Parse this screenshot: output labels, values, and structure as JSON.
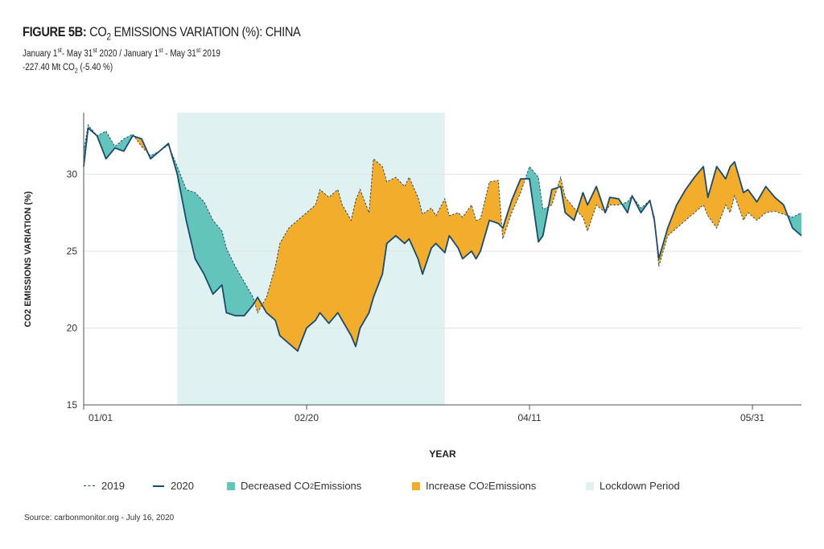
{
  "header": {
    "title_bold": "FIGURE 5B:",
    "title_rest_pre": " CO",
    "title_sub": "2",
    "title_rest_post": " EMISSIONS VARIATION (%): CHINA",
    "line1": {
      "a": "January 1",
      "a_sup": "st",
      "b": "- May 31",
      "b_sup": "st",
      "c": " 2020 / January 1",
      "c_sup": "st",
      "d": " - May 31",
      "d_sup": "st",
      "e": " 2019"
    },
    "line2": {
      "a": "-227.40 Mt CO",
      "a_sub": "2",
      "b": " (-5.40 %)"
    }
  },
  "source": "Source: carbonmonitor.org - July 16, 2020",
  "legend": {
    "l2019": "2019",
    "l2020": "2020",
    "dec_pre": "Decreased CO",
    "dec_sub": "2",
    "dec_post": " Emissions",
    "inc_pre": "Increase CO",
    "inc_sub": "2",
    "inc_post": " Emissions",
    "lockdown": "Lockdown Period"
  },
  "colors": {
    "line2020": "#1c4a6e",
    "line2019": "#2b4b63",
    "decrease": "#62c4bb",
    "increase": "#f3ad2c",
    "lockdown": "#dff1f1",
    "grid": "#e3e3e3"
  },
  "chart_data": {
    "type": "line",
    "xlabel": "YEAR",
    "ylabel": "CO2 EMISSIONS VARIATION (%)",
    "ylim": [
      15,
      34
    ],
    "yticks": [
      15,
      20,
      25,
      30
    ],
    "x_ticks": [
      {
        "day": 1,
        "label": "01/01"
      },
      {
        "day": 51,
        "label": "02/20"
      },
      {
        "day": 101,
        "label": "04/11"
      },
      {
        "day": 151,
        "label": "05/31"
      }
    ],
    "lockdown_days": [
      22,
      82
    ],
    "series": [
      {
        "name": "2019",
        "style": "dashed",
        "points": [
          [
            1,
            31.5
          ],
          [
            2,
            33.2
          ],
          [
            4,
            32.5
          ],
          [
            6,
            32.8
          ],
          [
            8,
            31.8
          ],
          [
            10,
            32.3
          ],
          [
            12,
            32.6
          ],
          [
            14,
            31.8
          ],
          [
            16,
            31.2
          ],
          [
            18,
            31.5
          ],
          [
            20,
            31.9
          ],
          [
            22,
            30.5
          ],
          [
            24,
            29
          ],
          [
            26,
            28.8
          ],
          [
            28,
            28.2
          ],
          [
            30,
            27
          ],
          [
            32,
            26.3
          ],
          [
            33,
            25.2
          ],
          [
            35,
            24
          ],
          [
            37,
            23
          ],
          [
            39,
            22
          ],
          [
            40,
            21
          ],
          [
            42,
            22
          ],
          [
            44,
            24
          ],
          [
            45,
            25.5
          ],
          [
            47,
            26.5
          ],
          [
            49,
            27
          ],
          [
            51,
            27.5
          ],
          [
            53,
            28
          ],
          [
            54,
            29
          ],
          [
            56,
            28.5
          ],
          [
            58,
            29
          ],
          [
            59,
            28
          ],
          [
            61,
            27
          ],
          [
            62,
            28.3
          ],
          [
            63,
            29
          ],
          [
            65,
            27.5
          ],
          [
            66,
            31
          ],
          [
            68,
            30.5
          ],
          [
            69,
            29.5
          ],
          [
            71,
            29.8
          ],
          [
            73,
            29.2
          ],
          [
            74,
            29.8
          ],
          [
            76,
            28.5
          ],
          [
            77,
            27.4
          ],
          [
            79,
            27.8
          ],
          [
            80,
            27.3
          ],
          [
            82,
            28.4
          ],
          [
            83,
            27.3
          ],
          [
            85,
            27.5
          ],
          [
            86,
            27.2
          ],
          [
            88,
            28
          ],
          [
            89,
            27
          ],
          [
            90,
            27.1
          ],
          [
            92,
            29.5
          ],
          [
            94,
            29.6
          ],
          [
            95,
            25.8
          ],
          [
            97,
            27.5
          ],
          [
            99,
            28.8
          ],
          [
            101,
            30.5
          ],
          [
            103,
            29.8
          ],
          [
            104,
            27.7
          ],
          [
            106,
            28
          ],
          [
            108,
            29.8
          ],
          [
            109,
            28.5
          ],
          [
            111,
            27.8
          ],
          [
            113,
            27.2
          ],
          [
            114,
            26.3
          ],
          [
            116,
            28
          ],
          [
            118,
            27.5
          ],
          [
            119,
            28
          ],
          [
            121,
            28
          ],
          [
            123,
            28.2
          ],
          [
            124,
            28.6
          ],
          [
            126,
            27.8
          ],
          [
            128,
            28.3
          ],
          [
            129,
            27.2
          ],
          [
            130,
            24
          ],
          [
            132,
            26
          ],
          [
            134,
            26.5
          ],
          [
            136,
            27
          ],
          [
            138,
            27.5
          ],
          [
            140,
            28
          ],
          [
            141,
            27.3
          ],
          [
            143,
            26.5
          ],
          [
            145,
            28
          ],
          [
            146,
            27.5
          ],
          [
            147,
            28.6
          ],
          [
            149,
            27
          ],
          [
            150,
            27.5
          ],
          [
            152,
            27
          ],
          [
            154,
            27.5
          ],
          [
            156,
            27.6
          ],
          [
            158,
            27.4
          ],
          [
            160,
            27.2
          ],
          [
            162,
            27.5
          ]
        ]
      },
      {
        "name": "2020",
        "style": "solid",
        "points": [
          [
            1,
            30.5
          ],
          [
            2,
            33
          ],
          [
            4,
            32.5
          ],
          [
            6,
            31
          ],
          [
            8,
            31.7
          ],
          [
            10,
            31.5
          ],
          [
            12,
            32.5
          ],
          [
            14,
            32.3
          ],
          [
            16,
            31
          ],
          [
            18,
            31.5
          ],
          [
            20,
            32
          ],
          [
            22,
            30
          ],
          [
            24,
            27
          ],
          [
            26,
            24.5
          ],
          [
            28,
            23.5
          ],
          [
            30,
            22.2
          ],
          [
            32,
            22.8
          ],
          [
            33,
            21
          ],
          [
            35,
            20.8
          ],
          [
            37,
            20.8
          ],
          [
            39,
            21.5
          ],
          [
            40,
            22
          ],
          [
            42,
            21
          ],
          [
            44,
            20.5
          ],
          [
            45,
            19.5
          ],
          [
            47,
            19
          ],
          [
            49,
            18.5
          ],
          [
            51,
            20
          ],
          [
            53,
            20.5
          ],
          [
            54,
            21
          ],
          [
            56,
            20.3
          ],
          [
            58,
            21
          ],
          [
            59,
            20.5
          ],
          [
            61,
            19.5
          ],
          [
            62,
            18.8
          ],
          [
            63,
            20
          ],
          [
            65,
            21
          ],
          [
            66,
            22
          ],
          [
            68,
            23.5
          ],
          [
            69,
            25.5
          ],
          [
            71,
            26
          ],
          [
            73,
            25.5
          ],
          [
            74,
            25.8
          ],
          [
            76,
            24.5
          ],
          [
            77,
            23.5
          ],
          [
            79,
            25.2
          ],
          [
            80,
            25.5
          ],
          [
            82,
            24.9
          ],
          [
            83,
            26
          ],
          [
            85,
            25.2
          ],
          [
            86,
            24.5
          ],
          [
            88,
            25
          ],
          [
            89,
            24.5
          ],
          [
            90,
            25
          ],
          [
            92,
            27
          ],
          [
            94,
            26.8
          ],
          [
            95,
            26.5
          ],
          [
            97,
            28.3
          ],
          [
            99,
            29.7
          ],
          [
            101,
            29.7
          ],
          [
            103,
            25.6
          ],
          [
            104,
            26
          ],
          [
            106,
            29
          ],
          [
            108,
            29.2
          ],
          [
            109,
            27.5
          ],
          [
            111,
            27
          ],
          [
            113,
            28.8
          ],
          [
            114,
            28
          ],
          [
            116,
            29.2
          ],
          [
            118,
            27.5
          ],
          [
            119,
            28.5
          ],
          [
            121,
            28.4
          ],
          [
            123,
            27.5
          ],
          [
            124,
            28.6
          ],
          [
            126,
            27.5
          ],
          [
            128,
            28.3
          ],
          [
            129,
            27
          ],
          [
            130,
            24.5
          ],
          [
            132,
            26.5
          ],
          [
            134,
            28
          ],
          [
            136,
            29
          ],
          [
            138,
            29.8
          ],
          [
            140,
            30.5
          ],
          [
            141,
            28.5
          ],
          [
            143,
            30.5
          ],
          [
            145,
            29.7
          ],
          [
            146,
            30.5
          ],
          [
            147,
            30.8
          ],
          [
            149,
            28.8
          ],
          [
            150,
            29
          ],
          [
            152,
            28.2
          ],
          [
            154,
            29.2
          ],
          [
            156,
            28.5
          ],
          [
            158,
            28
          ],
          [
            160,
            26.5
          ],
          [
            162,
            26
          ]
        ]
      }
    ]
  }
}
